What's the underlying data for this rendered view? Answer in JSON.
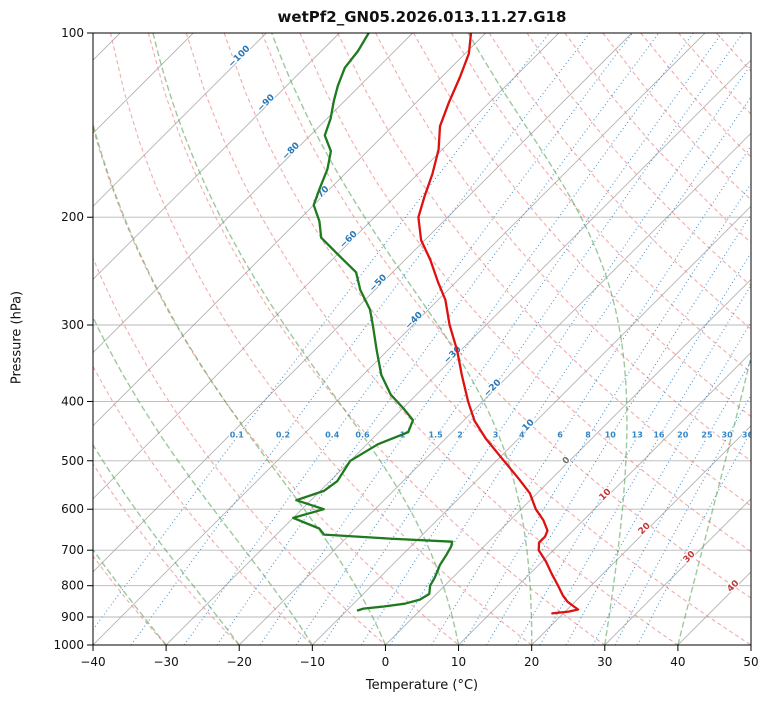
{
  "chart_data": {
    "type": "line",
    "diagram": "skew-t-log-p",
    "title": "wetPf2_GN05.2026.013.11.27.G18",
    "xlabel": "Temperature (°C)",
    "ylabel": "Pressure (hPa)",
    "xlim": [
      -40,
      50
    ],
    "pressure_lim": [
      1000,
      100
    ],
    "x_ticks": [
      -40,
      -30,
      -20,
      -10,
      0,
      10,
      20,
      30,
      40,
      50
    ],
    "pressure_ticks": [
      100,
      200,
      300,
      400,
      500,
      600,
      700,
      800,
      900,
      1000
    ],
    "skew_deg": 45,
    "series": [
      {
        "name": "temperature",
        "color": "#dd1111",
        "pressure": [
          100,
          108,
          118,
          130,
          142,
          155,
          170,
          185,
          200,
          218,
          235,
          255,
          273,
          300,
          330,
          362,
          400,
          430,
          460,
          500,
          535,
          565,
          600,
          625,
          650,
          665,
          680,
          700,
          730,
          765,
          800,
          830,
          850,
          865,
          875,
          882,
          888
        ],
        "temps": [
          -72,
          -69.5,
          -67.5,
          -65.5,
          -63.5,
          -60.5,
          -58,
          -56,
          -54,
          -50.5,
          -46.5,
          -42.5,
          -39,
          -35,
          -30.5,
          -26.5,
          -22,
          -18.5,
          -14.5,
          -9,
          -4.5,
          -1,
          2,
          4.5,
          6.5,
          7,
          7,
          8,
          10.5,
          13,
          15.5,
          17.5,
          19,
          20.5,
          21.5,
          20.5,
          18.5
        ]
      },
      {
        "name": "dewpoint",
        "color": "#1f7a1f",
        "pressure": [
          100,
          107,
          114,
          122,
          129,
          138,
          147,
          156,
          167,
          179,
          191,
          203,
          216,
          233,
          246,
          263,
          283,
          300,
          330,
          362,
          390,
          410,
          429,
          449,
          470,
          500,
          520,
          540,
          560,
          580,
          600,
          620,
          645,
          660,
          670,
          678,
          690,
          712,
          740,
          775,
          800,
          825,
          843,
          856,
          865,
          872,
          878
        ],
        "temps": [
          -86,
          -85,
          -84.5,
          -83,
          -81.5,
          -79.5,
          -78,
          -75,
          -73,
          -71.5,
          -70,
          -67,
          -64.5,
          -59,
          -55,
          -52,
          -48,
          -45.5,
          -41.5,
          -37.5,
          -33.5,
          -30,
          -27,
          -26,
          -28.5,
          -30,
          -29.5,
          -29,
          -29.5,
          -32,
          -27,
          -30,
          -25,
          -23.5,
          -14,
          -5,
          -4.5,
          -4,
          -3.5,
          -2.5,
          -2,
          -1,
          -1.5,
          -3,
          -5.5,
          -8,
          -8.5
        ]
      }
    ],
    "background": {
      "isotherms": {
        "start": -150,
        "end": 50,
        "step": 10,
        "color": "#999999"
      },
      "isotherm_labels": {
        "neg_color": "#2878b8",
        "zero_color": "#707070",
        "pos_color": "#c03a3a",
        "items": [
          {
            "t": -100,
            "p": 110
          },
          {
            "t": -90,
            "p": 131
          },
          {
            "t": -80,
            "p": 157
          },
          {
            "t": -70,
            "p": 185
          },
          {
            "t": -60,
            "p": 219
          },
          {
            "t": -50,
            "p": 258
          },
          {
            "t": -40,
            "p": 297
          },
          {
            "t": -30,
            "p": 338
          },
          {
            "t": -20,
            "p": 383
          },
          {
            "t": -10,
            "p": 445
          },
          {
            "t": 0,
            "p": 503
          },
          {
            "t": 10,
            "p": 572
          },
          {
            "t": 20,
            "p": 650
          },
          {
            "t": 30,
            "p": 723
          },
          {
            "t": 40,
            "p": 807
          }
        ]
      },
      "dry_adiabats": {
        "start": -30,
        "end": 180,
        "step": 10,
        "color": "#ee8888"
      },
      "moist_adiabats": {
        "start": -40,
        "end": 50,
        "step": 10,
        "color": "#4d9a4d"
      },
      "mixing_ratio_lines": {
        "values": [
          0.1,
          0.2,
          0.4,
          0.6,
          1,
          1.5,
          2,
          3,
          4,
          6,
          8,
          10,
          13,
          16,
          20,
          25,
          30,
          36
        ],
        "label_pressure": 458,
        "color": "#3585c5"
      }
    }
  }
}
